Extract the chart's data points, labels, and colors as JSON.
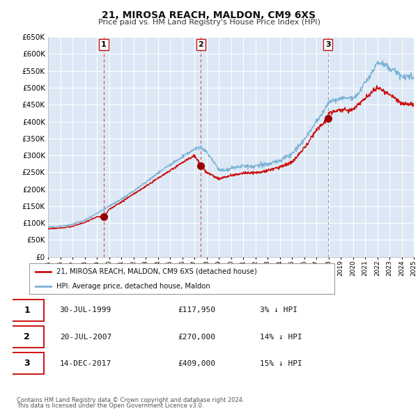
{
  "title": "21, MIROSA REACH, MALDON, CM9 6XS",
  "subtitle": "Price paid vs. HM Land Registry's House Price Index (HPI)",
  "ylim": [
    0,
    650000
  ],
  "yticks": [
    0,
    50000,
    100000,
    150000,
    200000,
    250000,
    300000,
    350000,
    400000,
    450000,
    500000,
    550000,
    600000,
    650000
  ],
  "ytick_labels": [
    "£0",
    "£50K",
    "£100K",
    "£150K",
    "£200K",
    "£250K",
    "£300K",
    "£350K",
    "£400K",
    "£450K",
    "£500K",
    "£550K",
    "£600K",
    "£650K"
  ],
  "background_color": "#dce8f5",
  "grid_color": "#ffffff",
  "hpi_color": "#7ab0d4",
  "price_color": "#cc1111",
  "sale_marker_color": "#990000",
  "sale_marker_size": 8,
  "transactions": [
    {
      "date_num": 1999.57,
      "price": 117950,
      "label": "1"
    },
    {
      "date_num": 2007.54,
      "price": 270000,
      "label": "2"
    },
    {
      "date_num": 2017.96,
      "price": 409000,
      "label": "3"
    }
  ],
  "legend_entries": [
    "21, MIROSA REACH, MALDON, CM9 6XS (detached house)",
    "HPI: Average price, detached house, Maldon"
  ],
  "table_rows": [
    {
      "num": "1",
      "date": "30-JUL-1999",
      "price": "£117,950",
      "pct": "3% ↓ HPI"
    },
    {
      "num": "2",
      "date": "20-JUL-2007",
      "price": "£270,000",
      "pct": "14% ↓ HPI"
    },
    {
      "num": "3",
      "date": "14-DEC-2017",
      "price": "£409,000",
      "pct": "15% ↓ HPI"
    }
  ],
  "footnote1": "Contains HM Land Registry data © Crown copyright and database right 2024.",
  "footnote2": "This data is licensed under the Open Government Licence v3.0.",
  "hpi_waypoints_t": [
    1995,
    1996,
    1997,
    1998,
    1999,
    2000,
    2001,
    2002,
    2003,
    2004,
    2005,
    2006,
    2007,
    2007.5,
    2008,
    2008.5,
    2009,
    2009.5,
    2010,
    2011,
    2012,
    2013,
    2014,
    2015,
    2016,
    2017,
    2017.5,
    2018,
    2019,
    2020,
    2020.5,
    2021,
    2021.5,
    2022,
    2022.5,
    2023,
    2023.5,
    2024,
    2025
  ],
  "hpi_waypoints_v": [
    88000,
    90000,
    96000,
    108000,
    128000,
    150000,
    170000,
    195000,
    220000,
    248000,
    272000,
    295000,
    318000,
    325000,
    310000,
    285000,
    258000,
    255000,
    262000,
    268000,
    268000,
    275000,
    285000,
    305000,
    345000,
    400000,
    425000,
    455000,
    470000,
    468000,
    485000,
    515000,
    540000,
    575000,
    570000,
    558000,
    548000,
    535000,
    530000
  ],
  "price_waypoints_t": [
    1995,
    1996,
    1997,
    1998,
    1999,
    1999.57,
    2000,
    2001,
    2002,
    2003,
    2004,
    2005,
    2006,
    2007,
    2007.54,
    2008,
    2009,
    2010,
    2011,
    2012,
    2013,
    2014,
    2015,
    2016,
    2017,
    2017.96,
    2018,
    2019,
    2020,
    2021,
    2022,
    2023,
    2024,
    2025
  ],
  "price_waypoints_v": [
    83000,
    85000,
    90000,
    102000,
    118000,
    117950,
    140000,
    162000,
    185000,
    208000,
    232000,
    255000,
    278000,
    300000,
    270000,
    250000,
    230000,
    240000,
    248000,
    248000,
    255000,
    265000,
    280000,
    320000,
    375000,
    409000,
    425000,
    435000,
    435000,
    470000,
    500000,
    480000,
    455000,
    450000
  ]
}
